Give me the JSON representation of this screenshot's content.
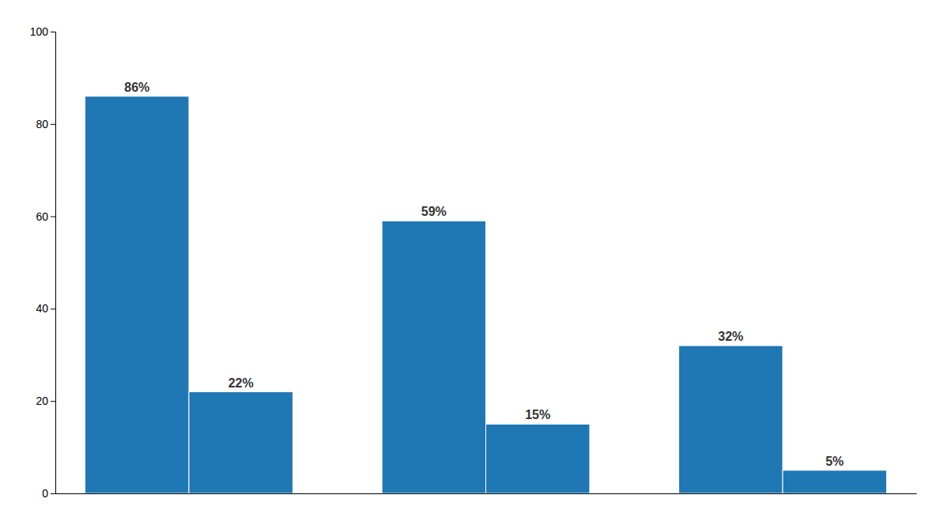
{
  "chart_data": {
    "type": "bar",
    "categories": [
      null,
      null,
      null
    ],
    "series": [
      {
        "values": [
          86,
          59,
          32
        ],
        "value_labels": [
          "86%",
          "59%",
          "32%"
        ]
      },
      {
        "values": [
          22,
          15,
          5
        ],
        "value_labels": [
          "22%",
          "15%",
          "5%"
        ]
      }
    ],
    "ylim": [
      0,
      100
    ],
    "yticks": [
      0,
      20,
      40,
      60,
      80,
      100
    ],
    "grid": false,
    "data_labels": true
  }
}
